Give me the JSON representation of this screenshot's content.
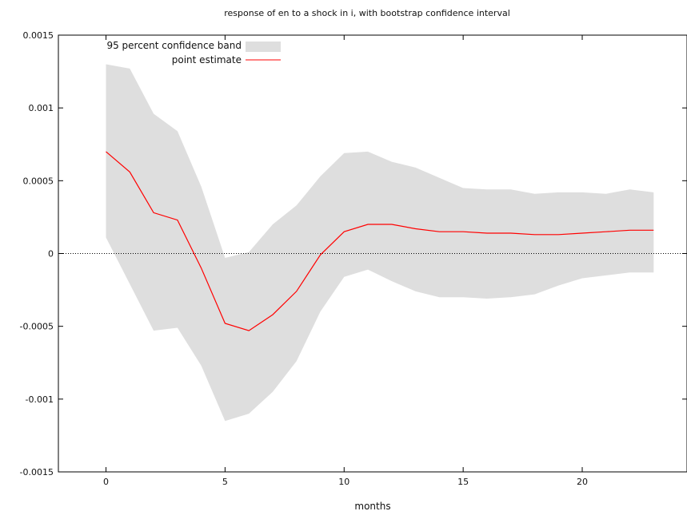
{
  "chart_data": {
    "type": "area",
    "title": "response of en to a shock in i, with bootstrap confidence interval",
    "xlabel": "months",
    "ylabel": "",
    "xlim": [
      -2,
      24.4
    ],
    "ylim": [
      -0.0015,
      0.0015
    ],
    "x_ticks": [
      0,
      5,
      10,
      15,
      20
    ],
    "x_tick_labels": [
      "0",
      "5",
      "10",
      "15",
      "20"
    ],
    "y_ticks": [
      -0.0015,
      -0.001,
      -0.0005,
      0,
      0.0005,
      0.001,
      0.0015
    ],
    "y_tick_labels": [
      "-0.0015",
      "-0.001",
      "-0.0005",
      "0",
      "0.0005",
      "0.001",
      "0.0015"
    ],
    "zero_line": true,
    "grid": false,
    "legend_position": "top-left",
    "x": [
      0,
      1,
      2,
      3,
      4,
      5,
      6,
      7,
      8,
      9,
      10,
      11,
      12,
      13,
      14,
      15,
      16,
      17,
      18,
      19,
      20,
      21,
      22,
      23
    ],
    "series": [
      {
        "name": "95 percent confidence band",
        "kind": "band",
        "color": "#dedede",
        "lower": [
          0.00011,
          -0.00021,
          -0.00053,
          -0.00051,
          -0.00077,
          -0.00115,
          -0.0011,
          -0.00095,
          -0.00074,
          -0.0004,
          -0.00016,
          -0.00011,
          -0.00019,
          -0.00026,
          -0.0003,
          -0.0003,
          -0.00031,
          -0.0003,
          -0.00028,
          -0.00022,
          -0.00017,
          -0.00015,
          -0.00013,
          -0.00013
        ],
        "upper": [
          0.0013,
          0.00127,
          0.00096,
          0.00084,
          0.00046,
          -3e-05,
          1e-05,
          0.0002,
          0.00033,
          0.00053,
          0.00069,
          0.0007,
          0.00063,
          0.00059,
          0.00052,
          0.00045,
          0.00044,
          0.00044,
          0.00041,
          0.00042,
          0.00042,
          0.00041,
          0.00044,
          0.00042
        ]
      },
      {
        "name": "point estimate",
        "kind": "line",
        "color": "#ff0000",
        "values": [
          0.0007,
          0.00056,
          0.00028,
          0.00023,
          -0.0001,
          -0.00048,
          -0.00053,
          -0.00042,
          -0.00026,
          -1e-05,
          0.00015,
          0.0002,
          0.0002,
          0.00017,
          0.00015,
          0.00015,
          0.00014,
          0.00014,
          0.00013,
          0.00013,
          0.00014,
          0.00015,
          0.00016,
          0.00016
        ]
      }
    ]
  }
}
